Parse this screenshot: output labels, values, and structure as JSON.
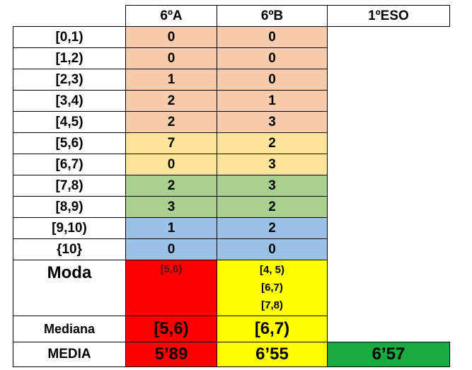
{
  "table": {
    "headers": [
      "6ºA",
      "6ºB",
      "1ºESO"
    ],
    "rows": [
      {
        "label": "[0,1)",
        "a": "0",
        "b": "0"
      },
      {
        "label": "[1,2)",
        "a": "0",
        "b": "0"
      },
      {
        "label": "[2,3)",
        "a": "1",
        "b": "0"
      },
      {
        "label": "[3,4)",
        "a": "2",
        "b": "1"
      },
      {
        "label": "[4,5)",
        "a": "2",
        "b": "3"
      },
      {
        "label": "[5,6)",
        "a": "7",
        "b": "2"
      },
      {
        "label": "[6,7)",
        "a": "0",
        "b": "3"
      },
      {
        "label": "[7,8)",
        "a": "2",
        "b": "3"
      },
      {
        "label": "[8,9)",
        "a": "3",
        "b": "2"
      },
      {
        "label": "[9,10)",
        "a": "1",
        "b": "2"
      },
      {
        "label": "{10}",
        "a": "0",
        "b": "0"
      }
    ],
    "moda": {
      "label": "Moda",
      "a": "[5,6)",
      "b": [
        "[4, 5)",
        "[6,7)",
        "[7,8)"
      ]
    },
    "mediana": {
      "label": "Mediana",
      "a": "[5,6)",
      "b": "[6,7)"
    },
    "media": {
      "label": "MEDIA",
      "a": "5’89",
      "b": "6’55",
      "eso": "6’57"
    }
  },
  "colors": {
    "fail_band": "#f7cbac",
    "pass_band": "#fee599",
    "good_band": "#a9d08e",
    "excellent_band": "#9bc2e6",
    "class_a_highlight": "#ff0000",
    "class_b_highlight": "#ffff00",
    "eso_highlight": "#1aab40"
  }
}
